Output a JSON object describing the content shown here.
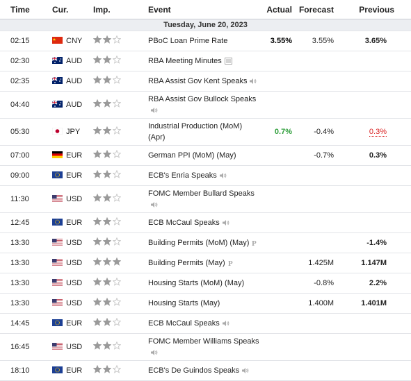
{
  "header": {
    "time": "Time",
    "currency": "Cur.",
    "importance": "Imp.",
    "event": "Event",
    "actual": "Actual",
    "forecast": "Forecast",
    "previous": "Previous"
  },
  "date": "Tuesday, June 20, 2023",
  "rows": [
    {
      "time": "02:15",
      "flag": "cn",
      "currency": "CNY",
      "importance": 2,
      "event": "PBoC Loan Prime Rate",
      "actual": "3.55%",
      "actual_color": "#000000",
      "forecast": "3.55%",
      "previous": "3.65%"
    },
    {
      "time": "02:30",
      "flag": "au",
      "currency": "AUD",
      "importance": 2,
      "event": "RBA Meeting Minutes",
      "icon": "doc"
    },
    {
      "time": "02:35",
      "flag": "au",
      "currency": "AUD",
      "importance": 2,
      "event": "RBA Assist Gov Kent Speaks",
      "icon": "speaker"
    },
    {
      "time": "04:40",
      "flag": "au",
      "currency": "AUD",
      "importance": 2,
      "event": "RBA Assist Gov Bullock Speaks",
      "icon": "speaker"
    },
    {
      "time": "05:30",
      "flag": "jp",
      "currency": "JPY",
      "importance": 2,
      "event": "Industrial Production (MoM) (Apr)",
      "actual": "0.7%",
      "actual_color": "#2e9e3a",
      "forecast": "-0.4%",
      "previous": "0.3%",
      "previous_color": "#d91e1e"
    },
    {
      "time": "07:00",
      "flag": "de",
      "currency": "EUR",
      "importance": 2,
      "event": "German PPI (MoM) (May)",
      "forecast": "-0.7%",
      "previous": "0.3%"
    },
    {
      "time": "09:00",
      "flag": "eu",
      "currency": "EUR",
      "importance": 2,
      "event": "ECB's Enria Speaks",
      "icon": "speaker"
    },
    {
      "time": "11:30",
      "flag": "us",
      "currency": "USD",
      "importance": 2,
      "event": "FOMC Member Bullard Speaks",
      "icon": "speaker"
    },
    {
      "time": "12:45",
      "flag": "eu",
      "currency": "EUR",
      "importance": 2,
      "event": "ECB McCaul Speaks",
      "icon": "speaker"
    },
    {
      "time": "13:30",
      "flag": "us",
      "currency": "USD",
      "importance": 2,
      "event": "Building Permits (MoM) (May)",
      "icon": "p",
      "previous": "-1.4%"
    },
    {
      "time": "13:30",
      "flag": "us",
      "currency": "USD",
      "importance": 3,
      "event": "Building Permits (May)",
      "icon": "p",
      "forecast": "1.425M",
      "previous": "1.147M"
    },
    {
      "time": "13:30",
      "flag": "us",
      "currency": "USD",
      "importance": 2,
      "event": "Housing Starts (MoM) (May)",
      "forecast": "-0.8%",
      "previous": "2.2%"
    },
    {
      "time": "13:30",
      "flag": "us",
      "currency": "USD",
      "importance": 2,
      "event": "Housing Starts (May)",
      "forecast": "1.400M",
      "previous": "1.401M"
    },
    {
      "time": "14:45",
      "flag": "eu",
      "currency": "EUR",
      "importance": 2,
      "event": "ECB McCaul Speaks",
      "icon": "speaker"
    },
    {
      "time": "16:45",
      "flag": "us",
      "currency": "USD",
      "importance": 2,
      "event": "FOMC Member Williams Speaks",
      "icon": "speaker"
    },
    {
      "time": "18:10",
      "flag": "eu",
      "currency": "EUR",
      "importance": 2,
      "event": "ECB's De Guindos Speaks",
      "icon": "speaker"
    }
  ]
}
